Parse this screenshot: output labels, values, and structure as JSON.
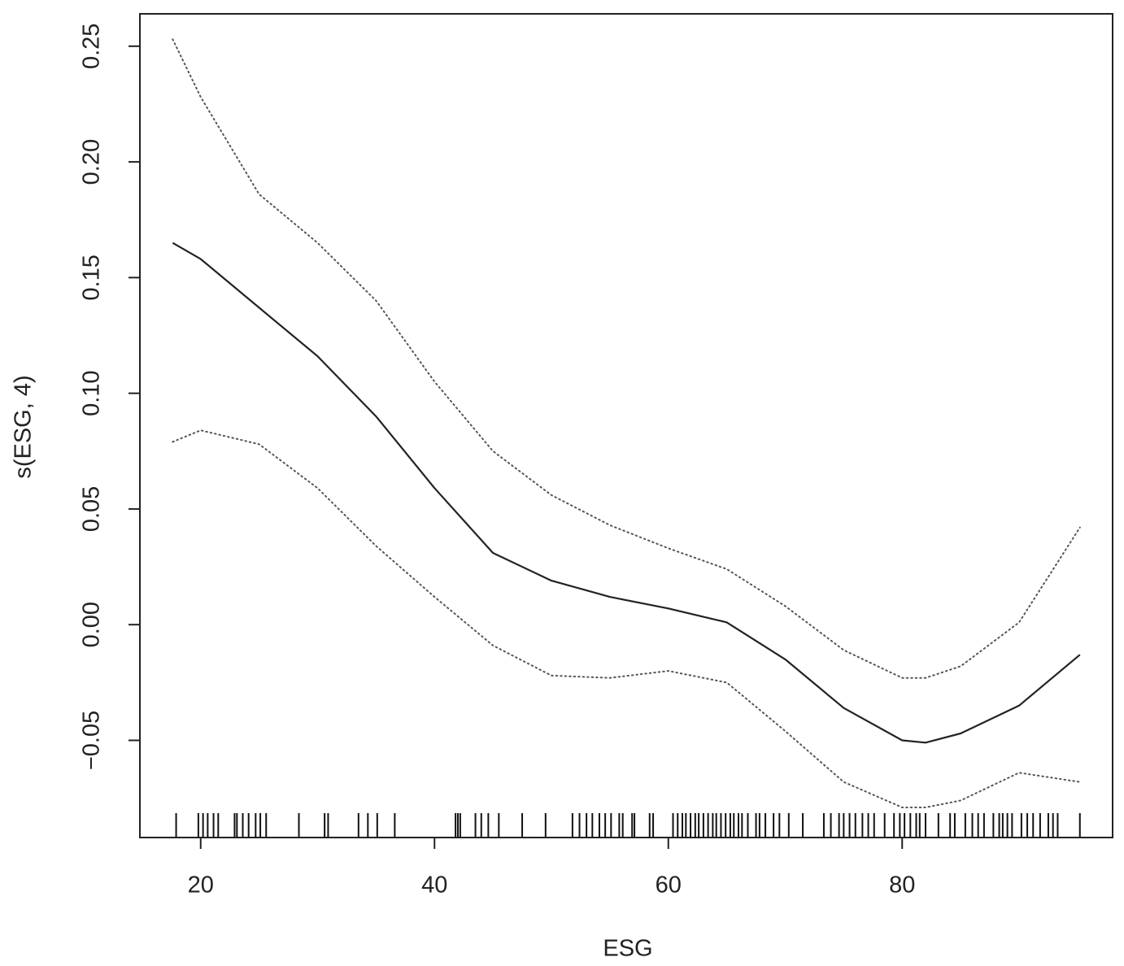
{
  "chart_data": {
    "type": "line",
    "x_label": "ESG",
    "y_label": "s(ESG, 4)",
    "x": [
      17.6,
      20,
      25,
      30,
      35,
      40,
      45,
      50,
      55,
      60,
      65,
      70,
      75,
      80,
      82,
      85,
      90,
      95.2
    ],
    "series": [
      {
        "color": "#222222",
        "line_style": "solid",
        "values": [
          0.165,
          0.158,
          0.137,
          0.116,
          0.09,
          0.059,
          0.031,
          0.019,
          0.012,
          0.007,
          0.001,
          -0.015,
          -0.036,
          -0.05,
          -0.051,
          -0.047,
          -0.035,
          -0.013
        ]
      },
      {
        "color": "#555555",
        "line_style": "dotted",
        "values": [
          0.253,
          0.228,
          0.186,
          0.165,
          0.14,
          0.105,
          0.075,
          0.056,
          0.043,
          0.033,
          0.024,
          0.008,
          -0.011,
          -0.023,
          -0.023,
          -0.018,
          0.001,
          0.042
        ]
      },
      {
        "color": "#555555",
        "line_style": "dotted",
        "values": [
          0.079,
          0.084,
          0.078,
          0.059,
          0.034,
          0.012,
          -0.009,
          -0.022,
          -0.023,
          -0.02,
          -0.025,
          -0.046,
          -0.068,
          -0.079,
          -0.079,
          -0.076,
          -0.064,
          -0.068
        ]
      }
    ],
    "rug": [
      17.9,
      19.8,
      20.2,
      20.6,
      21.1,
      21.5,
      22.9,
      23.1,
      23.6,
      24.1,
      24.7,
      25.1,
      25.6,
      28.4,
      30.6,
      30.9,
      33.5,
      34.3,
      35.1,
      36.6,
      41.8,
      42.0,
      42.2,
      43.5,
      44.0,
      44.6,
      45.5,
      47.5,
      49.5,
      51.8,
      52.4,
      53.0,
      53.5,
      54.1,
      54.6,
      55.1,
      55.8,
      56.1,
      56.9,
      57.1,
      58.4,
      58.7,
      60.4,
      60.8,
      61.2,
      61.5,
      61.9,
      62.3,
      62.6,
      63.0,
      63.4,
      63.8,
      64.1,
      64.5,
      64.9,
      65.3,
      65.6,
      66.0,
      66.3,
      66.8,
      67.5,
      67.8,
      68.3,
      69.0,
      69.5,
      70.3,
      71.5,
      73.3,
      73.9,
      74.6,
      75.0,
      75.5,
      76.0,
      76.6,
      77.1,
      77.6,
      78.5,
      79.3,
      79.8,
      80.2,
      80.7,
      81.2,
      81.5,
      82.0,
      83.1,
      84.1,
      84.5,
      85.4,
      86.0,
      86.5,
      87.0,
      87.8,
      88.3,
      88.6,
      89.0,
      89.4,
      90.2,
      90.7,
      91.2,
      91.8,
      92.5,
      92.9,
      93.3,
      95.2
    ],
    "xlim": [
      14.8,
      98.0
    ],
    "ylim": [
      -0.092,
      0.264
    ],
    "xticks": [
      20,
      40,
      60,
      80
    ],
    "yticks": [
      {
        "value": -0.05,
        "label": "−0.05"
      },
      {
        "value": 0,
        "label": "0.00"
      },
      0.05,
      {
        "value": 0.1,
        "label": "0.10"
      },
      0.15,
      {
        "value": 0.2,
        "label": "0.20"
      },
      0.25
    ],
    "grid": false
  }
}
